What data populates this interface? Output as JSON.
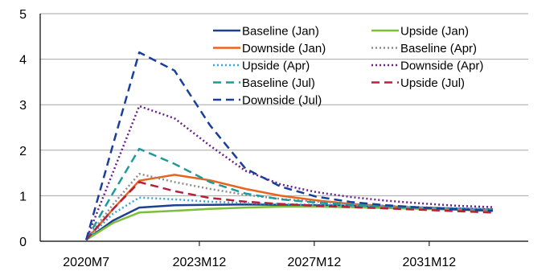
{
  "chart_data": {
    "type": "line",
    "title": "",
    "xlabel": "",
    "ylabel": "",
    "ylim": [
      0,
      5
    ],
    "yticks": [
      0,
      1,
      2,
      3,
      4,
      5
    ],
    "x_tick_labels": [
      "2020M7",
      "2023M12",
      "2027M12",
      "2031M12"
    ],
    "x": [
      2020.5,
      2021.25,
      2022.0,
      2023.0,
      2024.0,
      2025.0,
      2026.0,
      2027.0,
      2028.0,
      2029.0,
      2030.0,
      2031.0,
      2032.0
    ],
    "grid": true,
    "legend_position": "top-right",
    "series": [
      {
        "name": "Baseline (Jan)",
        "color": "#1f3f8f",
        "style": "solid",
        "values": [
          0.03,
          0.45,
          0.74,
          0.79,
          0.8,
          0.81,
          0.8,
          0.79,
          0.78,
          0.76,
          0.74,
          0.72,
          0.7
        ]
      },
      {
        "name": "Upside (Jan)",
        "color": "#7cbf3a",
        "style": "solid",
        "values": [
          0.03,
          0.4,
          0.63,
          0.67,
          0.71,
          0.74,
          0.76,
          0.76,
          0.75,
          0.73,
          0.71,
          0.69,
          0.67
        ]
      },
      {
        "name": "Downside (Jan)",
        "color": "#e8641e",
        "style": "solid",
        "values": [
          0.03,
          0.7,
          1.33,
          1.46,
          1.34,
          1.15,
          1.0,
          0.9,
          0.82,
          0.77,
          0.73,
          0.7,
          0.68
        ]
      },
      {
        "name": "Baseline (Apr)",
        "color": "#8c8c8c",
        "style": "dotted",
        "values": [
          0.03,
          0.8,
          1.48,
          1.3,
          1.15,
          1.02,
          0.93,
          0.87,
          0.82,
          0.78,
          0.75,
          0.72,
          0.7
        ]
      },
      {
        "name": "Upside (Apr)",
        "color": "#3aa7e0",
        "style": "dotted",
        "values": [
          0.03,
          0.6,
          0.96,
          0.92,
          0.87,
          0.84,
          0.82,
          0.8,
          0.78,
          0.76,
          0.74,
          0.72,
          0.7
        ]
      },
      {
        "name": "Downside (Apr)",
        "color": "#6a1f8f",
        "style": "dotted",
        "values": [
          0.03,
          1.5,
          2.97,
          2.7,
          2.1,
          1.55,
          1.25,
          1.08,
          0.97,
          0.89,
          0.83,
          0.78,
          0.75
        ]
      },
      {
        "name": "Baseline (Jul)",
        "color": "#1f9a9a",
        "style": "dashed",
        "values": [
          0.03,
          1.05,
          2.03,
          1.7,
          1.3,
          1.05,
          0.92,
          0.85,
          0.8,
          0.76,
          0.73,
          0.7,
          0.68
        ]
      },
      {
        "name": "Upside (Jul)",
        "color": "#b8203a",
        "style": "dashed",
        "values": [
          0.03,
          0.7,
          1.3,
          1.1,
          0.95,
          0.87,
          0.82,
          0.78,
          0.75,
          0.72,
          0.69,
          0.66,
          0.63
        ]
      },
      {
        "name": "Downside (Jul)",
        "color": "#1a3f9a",
        "style": "dashed",
        "values": [
          0.03,
          2.1,
          4.15,
          3.75,
          2.55,
          1.6,
          1.2,
          0.98,
          0.86,
          0.79,
          0.74,
          0.7,
          0.67
        ]
      }
    ]
  }
}
